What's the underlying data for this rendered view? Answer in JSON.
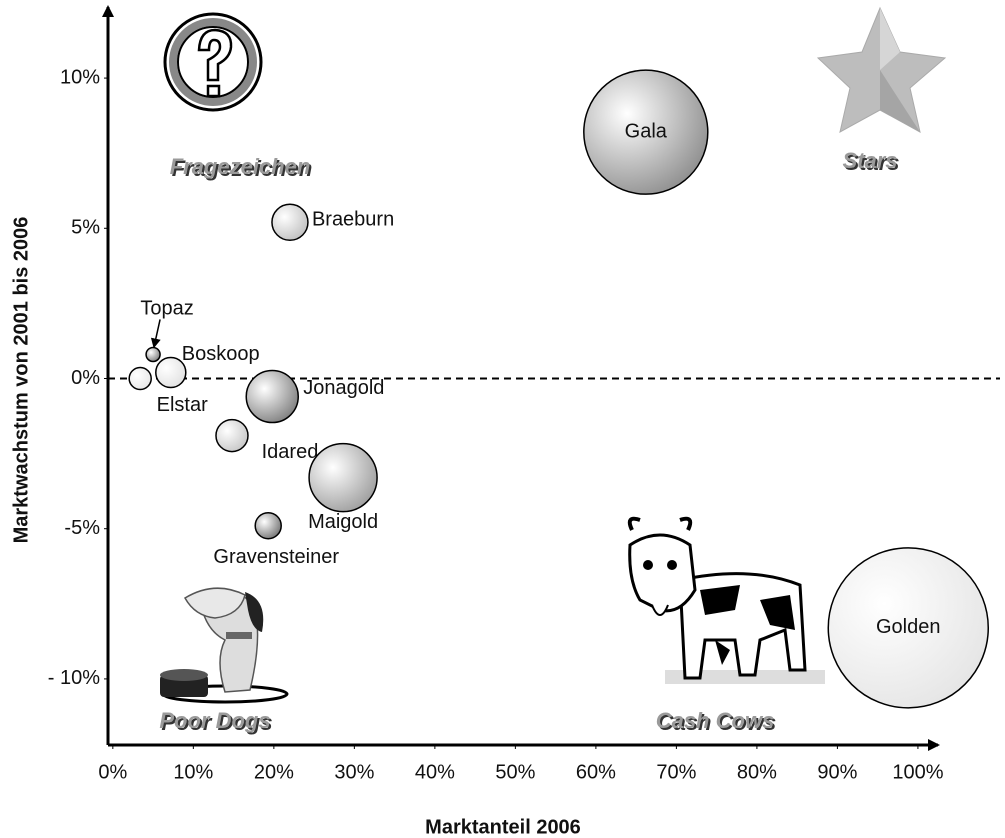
{
  "chart_data": {
    "type": "bubble",
    "x_label": "Marktanteil 2006",
    "y_label": "Marktwachstum von 2001 bis 2006",
    "xlim": [
      -0.6,
      101.5
    ],
    "ylim": [
      -12.2,
      12.1
    ],
    "xticks": [
      {
        "value": 0,
        "label": "0%"
      },
      {
        "value": 10,
        "label": "10%"
      },
      {
        "value": 20,
        "label": "20%"
      },
      {
        "value": 30,
        "label": "30%"
      },
      {
        "value": 40,
        "label": "40%"
      },
      {
        "value": 50,
        "label": "50%"
      },
      {
        "value": 60,
        "label": "60%"
      },
      {
        "value": 70,
        "label": "70%"
      },
      {
        "value": 80,
        "label": "80%"
      },
      {
        "value": 90,
        "label": "90%"
      },
      {
        "value": 100,
        "label": "100%"
      }
    ],
    "yticks": [
      {
        "value": 10,
        "label": "10%"
      },
      {
        "value": 5,
        "label": "5%"
      },
      {
        "value": 0,
        "label": "0%"
      },
      {
        "value": -5,
        "label": "-5%"
      },
      {
        "value": -10,
        "label": "- 10%"
      }
    ],
    "quadrants": [
      "Fragezeichen",
      "Stars",
      "Poor Dogs",
      "Cash Cows"
    ],
    "points": [
      {
        "name": "Gala",
        "x": 66.2,
        "y": 8.2,
        "size": 62,
        "color": "#8a8a8a"
      },
      {
        "name": "Braeburn",
        "x": 22,
        "y": 5.2,
        "size": 18,
        "color": "#bdbdbd"
      },
      {
        "name": "Topaz",
        "x": 5,
        "y": 0.8,
        "size": 7,
        "color": "#777777"
      },
      {
        "name": "Boskoop",
        "x": 7.2,
        "y": 0.2,
        "size": 15,
        "color": "#e0e0e0"
      },
      {
        "name": "Elstar",
        "x": 3.4,
        "y": 0,
        "size": 11,
        "color": "#e6e6e6"
      },
      {
        "name": "Jonagold",
        "x": 19.8,
        "y": -0.6,
        "size": 26,
        "color": "#7a7a7a"
      },
      {
        "name": "Idared",
        "x": 14.8,
        "y": -1.9,
        "size": 16,
        "color": "#c4c4c4"
      },
      {
        "name": "Maigold",
        "x": 28.6,
        "y": -3.3,
        "size": 34,
        "color": "#9a9a9a"
      },
      {
        "name": "Gravensteiner",
        "x": 19.3,
        "y": -4.9,
        "size": 13,
        "color": "#6e6e6e"
      },
      {
        "name": "Golden",
        "x": 98.8,
        "y": -8.3,
        "size": 80,
        "color": "#e4e4e4"
      }
    ]
  }
}
